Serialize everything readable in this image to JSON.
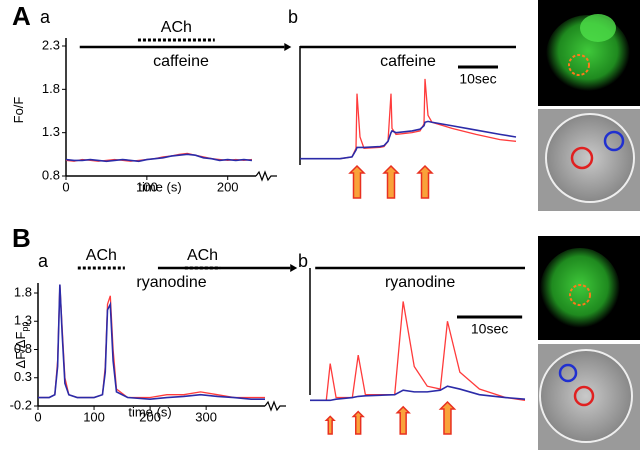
{
  "figure_labels": [
    "A",
    "B"
  ],
  "chart_data": [
    {
      "type": "line",
      "panel_label": "a",
      "xlabel": "time (s)",
      "ylabel": {
        "main": "Fo/F"
      },
      "x": [
        0,
        10,
        20,
        30,
        40,
        50,
        60,
        70,
        80,
        90,
        100,
        110,
        120,
        130,
        140,
        150,
        160,
        170,
        180,
        190,
        200,
        210,
        220,
        230
      ],
      "series": [
        {
          "color": "#ff3b3b",
          "values": [
            0.98,
            0.97,
            0.99,
            0.98,
            0.97,
            0.98,
            0.99,
            0.98,
            0.97,
            0.98,
            0.99,
            1.0,
            1.02,
            1.03,
            1.05,
            1.06,
            1.04,
            1.02,
            1.0,
            0.99,
            0.98,
            0.99,
            0.98,
            0.99
          ]
        },
        {
          "color": "#2b2ba8",
          "values": [
            0.99,
            0.98,
            0.98,
            0.99,
            0.98,
            0.97,
            0.98,
            0.99,
            0.98,
            0.97,
            0.99,
            1.0,
            1.01,
            1.03,
            1.04,
            1.05,
            1.04,
            1.01,
            1.0,
            0.98,
            0.99,
            0.98,
            0.99,
            0.98
          ]
        }
      ],
      "xlim": [
        0,
        235
      ],
      "xticks": [
        0,
        100,
        200
      ],
      "ylim": [
        0.8,
        2.3
      ],
      "yticks": [
        0.8,
        1.3,
        1.8,
        2.3
      ],
      "axis_break": true,
      "bars": [
        {
          "text": "ACh",
          "start": 89,
          "end": 184,
          "style": "dashed",
          "side": "above",
          "arrow": false
        },
        {
          "text": "caffeine",
          "start": 17,
          "end": 270,
          "style": "solid",
          "side": "below",
          "arrow": true
        }
      ]
    },
    {
      "type": "line",
      "panel_label": "b",
      "x": [
        0,
        5,
        10,
        13,
        14,
        14.25,
        15,
        16,
        20,
        21,
        22,
        22.75,
        23,
        24,
        28,
        30,
        31,
        31.25,
        32,
        33,
        38,
        44,
        50,
        54
      ],
      "series": [
        {
          "color": "#ff3b3b",
          "values": [
            1.0,
            1.0,
            1.0,
            1.02,
            1.12,
            1.75,
            1.25,
            1.12,
            1.13,
            1.14,
            1.2,
            1.75,
            1.35,
            1.28,
            1.3,
            1.32,
            1.4,
            1.92,
            1.5,
            1.42,
            1.35,
            1.28,
            1.22,
            1.2
          ]
        },
        {
          "color": "#2b2ba8",
          "values": [
            1.0,
            1.0,
            1.0,
            1.02,
            1.1,
            1.13,
            1.13,
            1.13,
            1.14,
            1.15,
            1.2,
            1.3,
            1.32,
            1.3,
            1.32,
            1.34,
            1.38,
            1.42,
            1.43,
            1.42,
            1.38,
            1.33,
            1.28,
            1.25
          ]
        }
      ],
      "xlim": [
        0,
        54
      ],
      "ylim": [
        0.8,
        2.3
      ],
      "bars": [
        {
          "text": "caffeine",
          "start": 0,
          "end": 54,
          "style": "solid",
          "side": "below",
          "arrow": false
        }
      ],
      "scale_bar": {
        "value": 10,
        "label": "10sec"
      },
      "stimuli": [
        14.25,
        22.75,
        31.25
      ]
    },
    {
      "type": "line",
      "panel_label": "a",
      "xlabel": "time (s)",
      "ylabel": {
        "main": "ΔF/ΔF",
        "sub": "pp"
      },
      "x": [
        0,
        20,
        30,
        35,
        39,
        43,
        48,
        55,
        70,
        100,
        115,
        120,
        124,
        129,
        134,
        140,
        160,
        200,
        230,
        260,
        290,
        320,
        350,
        380,
        405
      ],
      "series": [
        {
          "color": "#ff3b3b",
          "values": [
            -0.05,
            -0.05,
            0.0,
            0.6,
            1.95,
            1.2,
            0.3,
            0.0,
            -0.05,
            -0.05,
            0.0,
            0.5,
            1.6,
            1.75,
            0.8,
            0.1,
            -0.05,
            -0.05,
            0.0,
            0.0,
            0.05,
            0.0,
            -0.05,
            -0.05,
            -0.05
          ]
        },
        {
          "color": "#2b2ba8",
          "values": [
            -0.05,
            -0.05,
            0.0,
            0.5,
            1.95,
            1.1,
            0.2,
            0.0,
            -0.05,
            -0.05,
            0.0,
            0.4,
            1.5,
            1.6,
            0.6,
            0.05,
            -0.05,
            -0.08,
            -0.05,
            -0.03,
            0.0,
            -0.03,
            -0.05,
            -0.08,
            -0.08
          ]
        }
      ],
      "xlim": [
        0,
        405
      ],
      "xticks": [
        0,
        100,
        200,
        300
      ],
      "ylim": [
        -0.2,
        1.8
      ],
      "yticks": [
        -0.2,
        0.3,
        0.8,
        1.3,
        1.8
      ],
      "axis_break": true,
      "bars": [
        {
          "text": "ACh",
          "start": 71,
          "end": 155,
          "style": "dashed",
          "side": "above",
          "arrow": false
        },
        {
          "text": "ryanodine",
          "start": 214,
          "end": 450,
          "style": "solid",
          "side": "below",
          "arrow": true
        },
        {
          "text": "ACh",
          "start": 262,
          "end": 325,
          "style": "dashed",
          "side": "above",
          "arrow": false
        }
      ]
    },
    {
      "type": "line",
      "panel_label": "b",
      "x": [
        0,
        2.5,
        3.1,
        4,
        6.5,
        7.4,
        8.5,
        13,
        14.3,
        16,
        18,
        20,
        21.1,
        23,
        26,
        30,
        33
      ],
      "series": [
        {
          "color": "#ff3b3b",
          "values": [
            -0.1,
            -0.1,
            0.55,
            -0.05,
            -0.05,
            0.7,
            0.0,
            0.0,
            1.65,
            0.5,
            0.15,
            0.1,
            1.3,
            0.4,
            0.1,
            -0.05,
            -0.1
          ]
        },
        {
          "color": "#2b2ba8",
          "values": [
            -0.1,
            -0.1,
            -0.1,
            -0.08,
            -0.05,
            -0.03,
            -0.02,
            0.0,
            0.08,
            0.05,
            0.05,
            0.08,
            0.15,
            0.1,
            0.0,
            -0.05,
            -0.08
          ]
        }
      ],
      "xlim": [
        0,
        33
      ],
      "ylim": [
        -0.2,
        1.8
      ],
      "bars": [
        {
          "text": "ryanodine",
          "start": 0.8,
          "end": 33,
          "style": "solid",
          "side": "below",
          "arrow": false
        }
      ],
      "scale_bar": {
        "value": 10,
        "label": "10sec"
      },
      "stimuli": [
        3.1,
        7.4,
        14.3,
        21.1
      ]
    }
  ]
}
